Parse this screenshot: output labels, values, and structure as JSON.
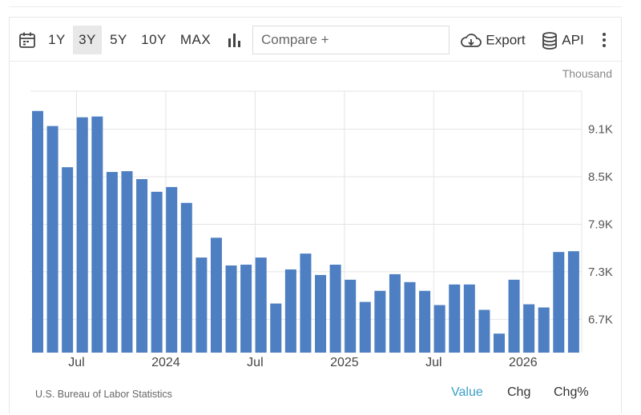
{
  "toolbar": {
    "ranges": [
      "1Y",
      "3Y",
      "5Y",
      "10Y",
      "MAX"
    ],
    "active_range": "3Y",
    "compare_placeholder": "Compare +",
    "export_label": "Export",
    "api_label": "API"
  },
  "icons": {
    "calendar": "calendar-icon",
    "chart_type": "bar-chart-icon",
    "export": "cloud-download-icon",
    "api": "database-icon",
    "more": "more-vertical-icon"
  },
  "colors": {
    "bar": "#4d7fc2",
    "active_tab": "#3a9fc7",
    "grid": "#e4e4e4"
  },
  "chart_data": {
    "type": "bar",
    "unit": "Thousand",
    "ylim": [
      6.28,
      9.58
    ],
    "y_ticks": [
      6.7,
      7.3,
      7.9,
      8.5,
      9.1
    ],
    "y_tick_labels": [
      "6.7K",
      "7.3K",
      "7.9K",
      "8.5K",
      "9.1K"
    ],
    "x_tick_labels": [
      "Jul",
      "2024",
      "Jul",
      "2025",
      "Jul",
      "2026"
    ],
    "x_tick_index": [
      2.5,
      8.5,
      14.5,
      20.5,
      26.5,
      32.5
    ],
    "grid": true,
    "values": [
      9.33,
      9.14,
      8.62,
      9.25,
      9.26,
      8.56,
      8.57,
      8.47,
      8.31,
      8.37,
      8.17,
      7.48,
      7.73,
      7.38,
      7.39,
      7.48,
      6.9,
      7.33,
      7.53,
      7.26,
      7.39,
      7.2,
      6.92,
      7.06,
      7.27,
      7.17,
      7.06,
      6.88,
      7.14,
      7.14,
      6.82,
      6.52,
      7.2,
      6.89,
      6.85,
      7.55,
      7.56
    ]
  },
  "footer": {
    "source": "U.S. Bureau of Labor Statistics",
    "tabs": [
      "Value",
      "Chg",
      "Chg%"
    ],
    "active_tab": "Value"
  }
}
